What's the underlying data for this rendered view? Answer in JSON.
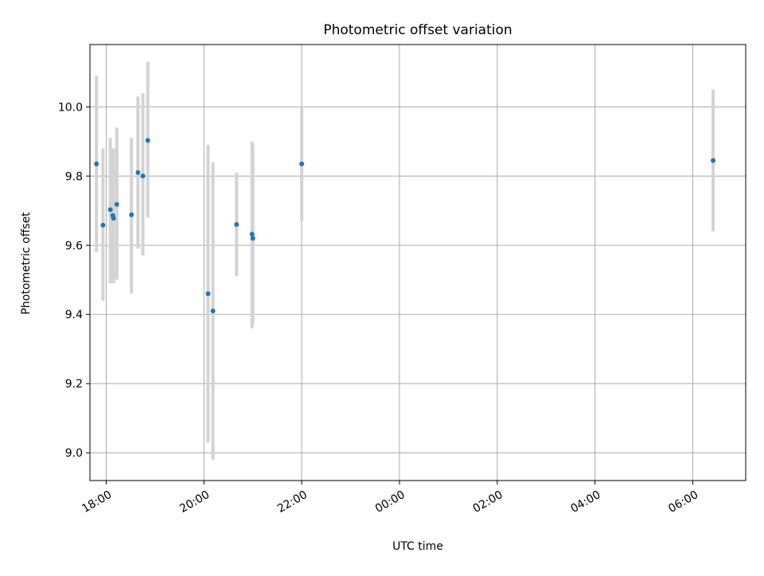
{
  "chart_data": {
    "type": "scatter",
    "title": "Photometric offset variation",
    "xlabel": "UTC time",
    "ylabel": "Photometric offset",
    "x_axis_kind": "time",
    "xlim": [
      "17:40",
      "07:05"
    ],
    "ylim": [
      8.92,
      10.18
    ],
    "x_ticks": [
      "18:00",
      "20:00",
      "22:00",
      "00:00",
      "02:00",
      "04:00",
      "06:00"
    ],
    "y_ticks": [
      "9.0",
      "9.2",
      "9.4",
      "9.6",
      "9.8",
      "10.0"
    ],
    "grid": true,
    "legend": "none",
    "colors": {
      "points": "#1f77b4",
      "error_bars": "#d3d3d3",
      "grid": "#b0b0b0"
    },
    "points": [
      {
        "x": "17:48",
        "y": 9.835,
        "y_low": 9.58,
        "y_high": 10.09
      },
      {
        "x": "17:56",
        "y": 9.658,
        "y_low": 9.44,
        "y_high": 9.88
      },
      {
        "x": "18:05",
        "y": 9.703,
        "y_low": 9.49,
        "y_high": 9.91
      },
      {
        "x": "18:08",
        "y": 9.686,
        "y_low": 9.5,
        "y_high": 9.88
      },
      {
        "x": "18:09",
        "y": 9.678,
        "y_low": 9.49,
        "y_high": 9.88
      },
      {
        "x": "18:13",
        "y": 9.718,
        "y_low": 9.5,
        "y_high": 9.94
      },
      {
        "x": "18:31",
        "y": 9.688,
        "y_low": 9.46,
        "y_high": 9.91
      },
      {
        "x": "18:39",
        "y": 9.81,
        "y_low": 9.59,
        "y_high": 10.03
      },
      {
        "x": "18:45",
        "y": 9.8,
        "y_low": 9.57,
        "y_high": 10.04
      },
      {
        "x": "18:51",
        "y": 9.903,
        "y_low": 9.68,
        "y_high": 10.13
      },
      {
        "x": "20:05",
        "y": 9.46,
        "y_low": 9.03,
        "y_high": 9.89
      },
      {
        "x": "20:11",
        "y": 9.41,
        "y_low": 8.98,
        "y_high": 9.84
      },
      {
        "x": "20:40",
        "y": 9.66,
        "y_low": 9.51,
        "y_high": 9.81
      },
      {
        "x": "20:59",
        "y": 9.632,
        "y_low": 9.36,
        "y_high": 9.9
      },
      {
        "x": "21:00",
        "y": 9.62,
        "y_low": 9.37,
        "y_high": 9.89
      },
      {
        "x": "22:00",
        "y": 9.835,
        "y_low": 9.67,
        "y_high": 10.0
      },
      {
        "x": "06:25",
        "y": 9.845,
        "y_low": 9.64,
        "y_high": 10.05
      }
    ]
  }
}
